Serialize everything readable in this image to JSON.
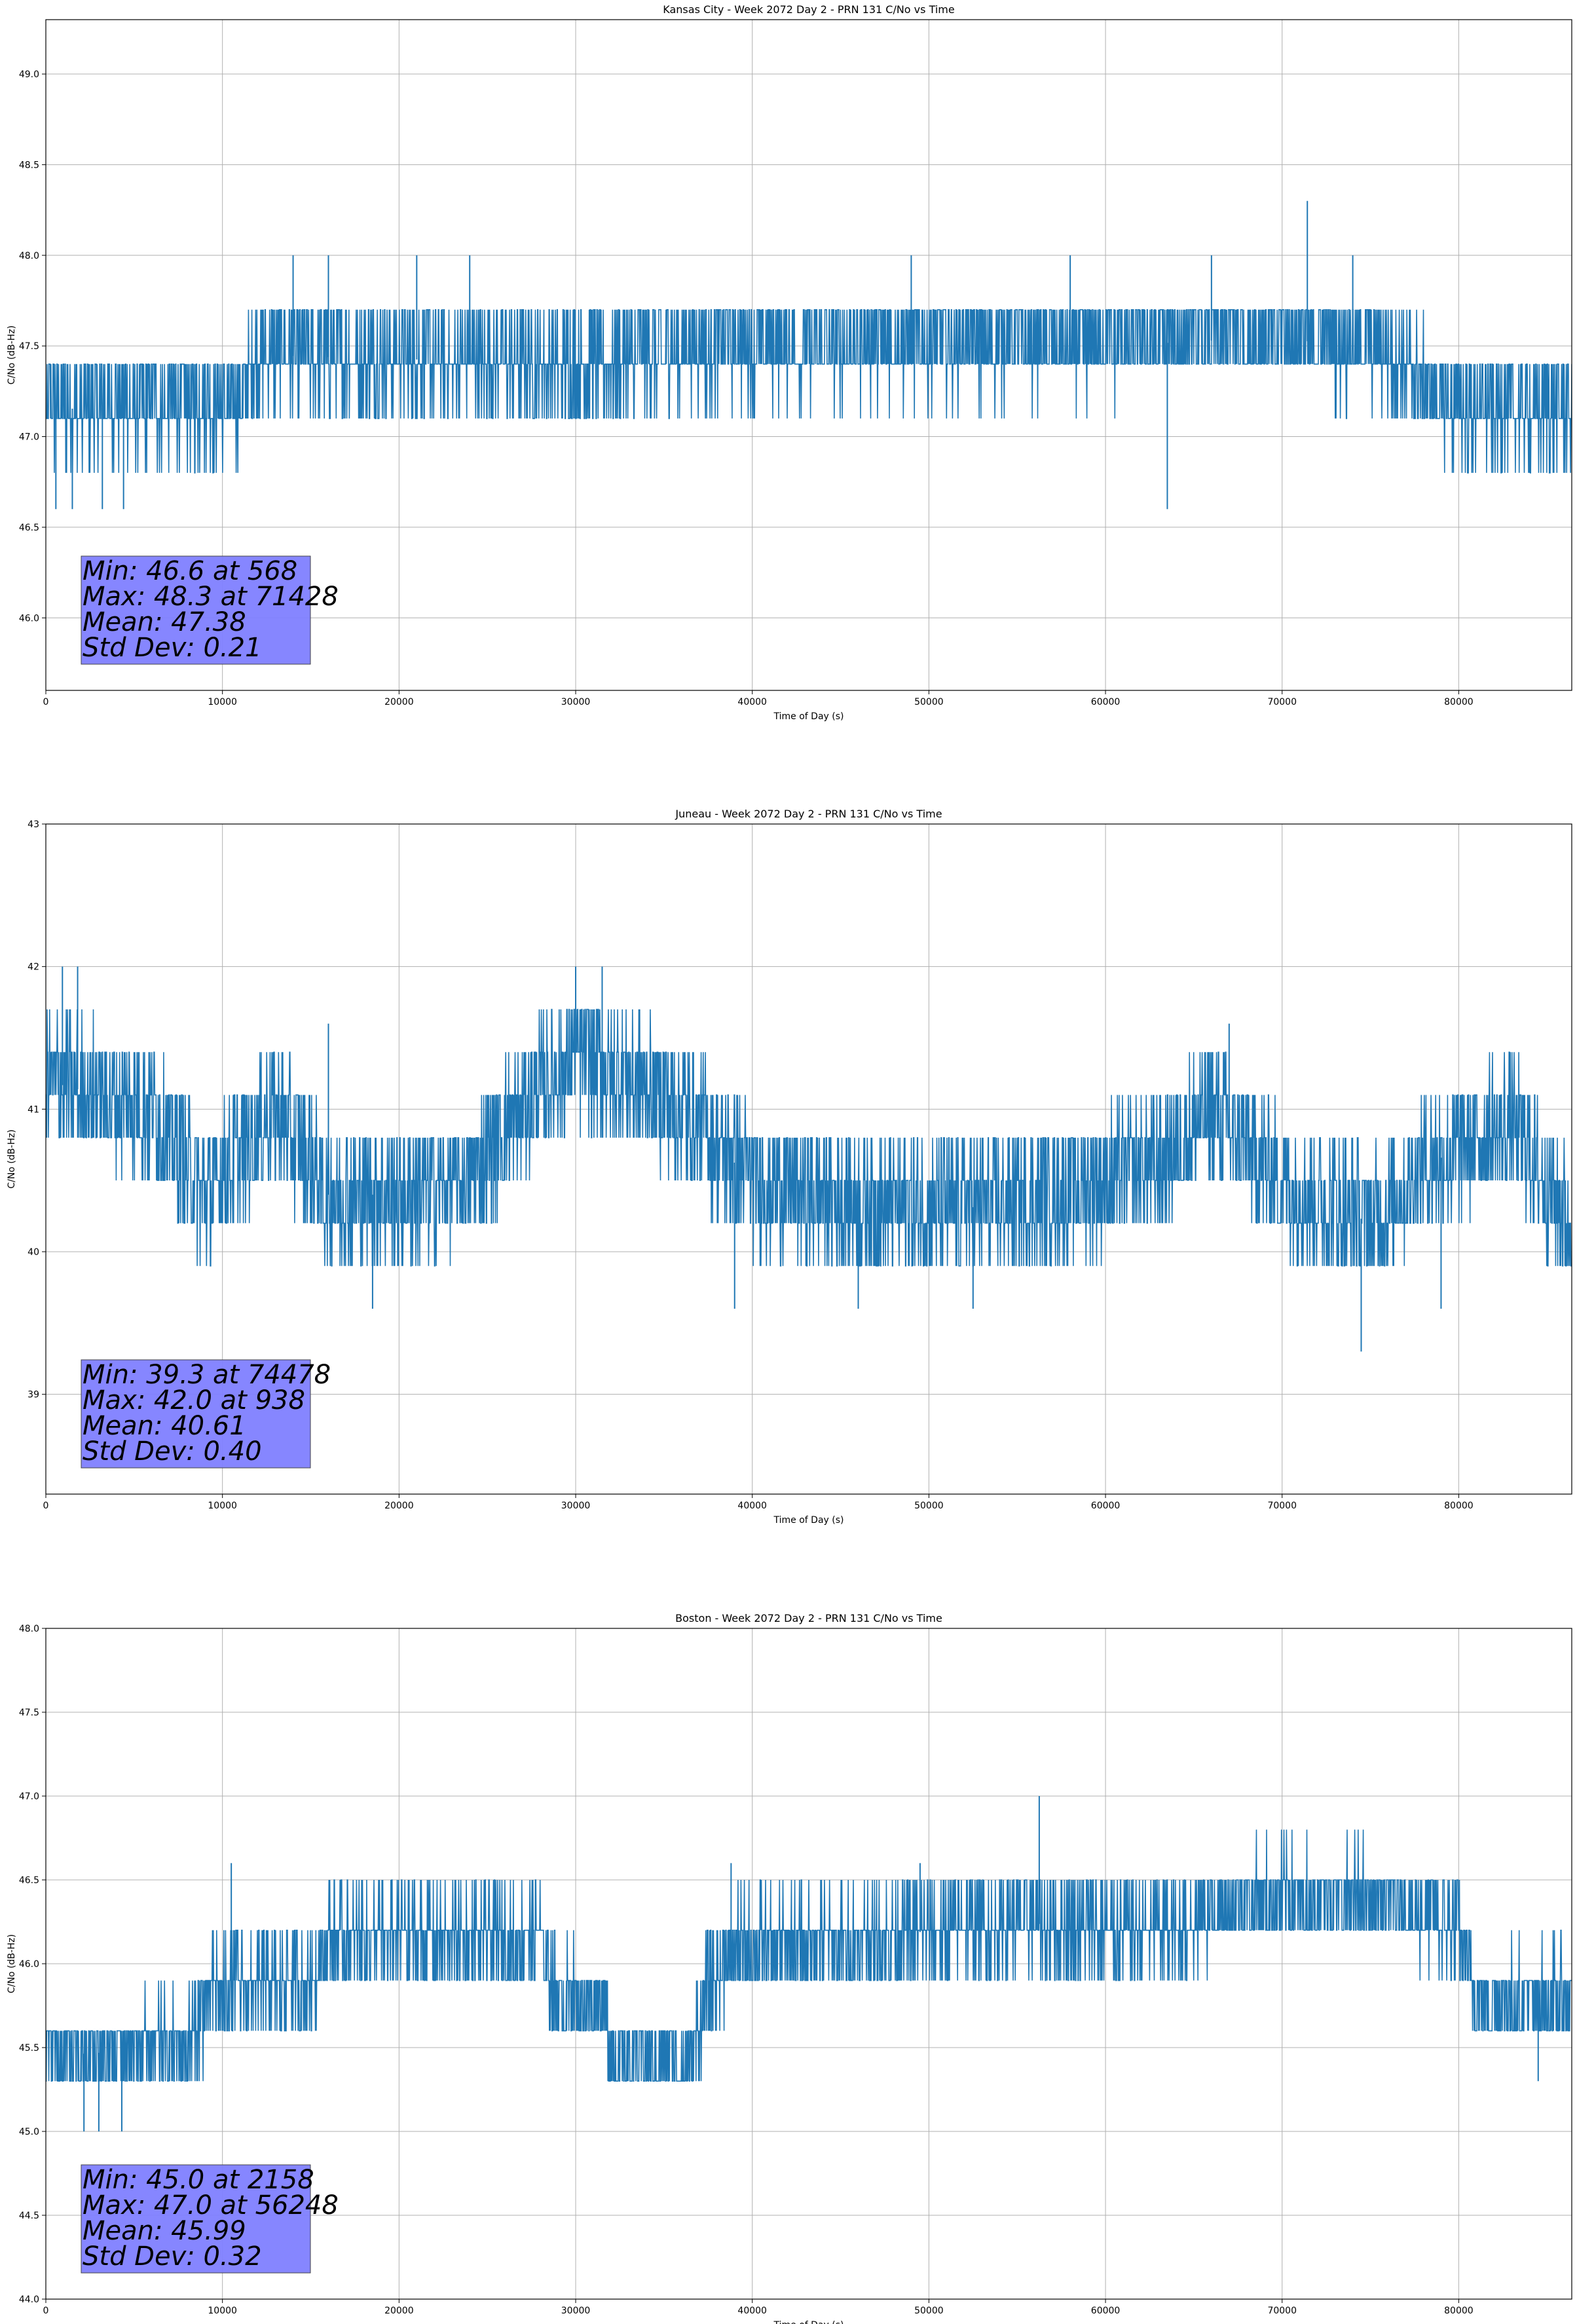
{
  "chart_data": [
    {
      "type": "line",
      "title": "Kansas City - Week 2072 Day 2 - PRN 131 C/No vs Time",
      "xlabel": "Time of Day (s)",
      "ylabel": "C/No (dB-Hz)",
      "xlim": [
        0,
        86400
      ],
      "ylim": [
        45.6,
        49.3
      ],
      "xticks": [
        0,
        10000,
        20000,
        30000,
        40000,
        50000,
        60000,
        70000,
        80000
      ],
      "yticks": [
        "46.0",
        "46.5",
        "47.0",
        "47.5",
        "48.0",
        "48.5",
        "49.0"
      ],
      "grid": true,
      "series_color": "#1f77b4",
      "quantization": 0.3,
      "trend": [
        [
          0,
          47.15
        ],
        [
          11000,
          47.18
        ],
        [
          12000,
          47.45
        ],
        [
          30000,
          47.4
        ],
        [
          40000,
          47.5
        ],
        [
          60000,
          47.5
        ],
        [
          70000,
          47.55
        ],
        [
          76000,
          47.45
        ],
        [
          80000,
          47.15
        ],
        [
          86400,
          47.15
        ]
      ],
      "spread": 0.17,
      "spikes": [
        [
          568,
          46.6
        ],
        [
          1500,
          46.6
        ],
        [
          3200,
          46.6
        ],
        [
          4400,
          46.6
        ],
        [
          14000,
          48.0
        ],
        [
          16000,
          48.0
        ],
        [
          21000,
          48.0
        ],
        [
          24000,
          48.0
        ],
        [
          49000,
          48.0
        ],
        [
          58000,
          48.0
        ],
        [
          63500,
          46.6
        ],
        [
          66000,
          48.0
        ],
        [
          71428,
          48.3
        ],
        [
          74000,
          48.0
        ]
      ],
      "stats": {
        "min": "Min: 46.6 at 568",
        "max": "Max: 48.3 at 71428",
        "mean": "Mean: 47.38",
        "std": "Std Dev: 0.21"
      },
      "stats_box_color": "#8080ff"
    },
    {
      "type": "line",
      "title": "Juneau - Week 2072 Day 2 - PRN 131 C/No vs Time",
      "xlabel": "Time of Day (s)",
      "ylabel": "C/No (dB-Hz)",
      "xlim": [
        0,
        86400
      ],
      "ylim": [
        38.3,
        43
      ],
      "xticks": [
        0,
        10000,
        20000,
        30000,
        40000,
        50000,
        60000,
        70000,
        80000
      ],
      "yticks": [
        "39",
        "40",
        "41",
        "42",
        "43"
      ],
      "grid": true,
      "series_color": "#1f77b4",
      "quantization": 0.3,
      "trend": [
        [
          0,
          41.2
        ],
        [
          6000,
          41.0
        ],
        [
          9000,
          40.4
        ],
        [
          13000,
          41.0
        ],
        [
          16000,
          40.4
        ],
        [
          20000,
          40.4
        ],
        [
          24000,
          40.5
        ],
        [
          27000,
          41.0
        ],
        [
          30000,
          41.4
        ],
        [
          36000,
          41.0
        ],
        [
          40000,
          40.5
        ],
        [
          48000,
          40.3
        ],
        [
          52000,
          40.3
        ],
        [
          60000,
          40.5
        ],
        [
          63000,
          40.6
        ],
        [
          66000,
          41.0
        ],
        [
          70000,
          40.5
        ],
        [
          75000,
          40.2
        ],
        [
          78000,
          40.6
        ],
        [
          83000,
          40.9
        ],
        [
          86400,
          40.2
        ]
      ],
      "spread": 0.3,
      "spikes": [
        [
          938,
          42.0
        ],
        [
          1800,
          42.0
        ],
        [
          30000,
          42.0
        ],
        [
          31500,
          42.0
        ],
        [
          18500,
          39.6
        ],
        [
          39000,
          39.6
        ],
        [
          46000,
          39.6
        ],
        [
          52500,
          39.6
        ],
        [
          74478,
          39.3
        ],
        [
          79000,
          39.6
        ],
        [
          67000,
          41.6
        ],
        [
          16000,
          41.6
        ]
      ],
      "stats": {
        "min": "Min: 39.3 at 74478",
        "max": "Max: 42.0 at 938",
        "mean": "Mean: 40.61",
        "std": "Std Dev: 0.40"
      },
      "stats_box_color": "#8080ff"
    },
    {
      "type": "line",
      "title": "Boston - Week 2072 Day 2 - PRN 131 C/No vs Time",
      "xlabel": "Time of Day (s)",
      "ylabel": "C/No (dB-Hz)",
      "xlim": [
        0,
        86400
      ],
      "ylim": [
        44.0,
        48.0
      ],
      "xticks": [
        0,
        10000,
        20000,
        30000,
        40000,
        50000,
        60000,
        70000,
        80000
      ],
      "yticks": [
        "44.0",
        "44.5",
        "45.0",
        "45.5",
        "46.0",
        "46.5",
        "47.0",
        "47.5",
        "48.0"
      ],
      "grid": true,
      "series_color": "#1f77b4",
      "quantization": 0.3,
      "trend": [
        [
          0,
          45.45
        ],
        [
          8000,
          45.5
        ],
        [
          9500,
          45.85
        ],
        [
          15000,
          45.9
        ],
        [
          16000,
          46.15
        ],
        [
          28000,
          46.15
        ],
        [
          29000,
          45.8
        ],
        [
          31500,
          45.8
        ],
        [
          32000,
          45.45
        ],
        [
          36500,
          45.45
        ],
        [
          37500,
          45.85
        ],
        [
          39000,
          46.1
        ],
        [
          46000,
          46.15
        ],
        [
          55000,
          46.25
        ],
        [
          60000,
          46.2
        ],
        [
          64000,
          46.2
        ],
        [
          68000,
          46.4
        ],
        [
          75000,
          46.4
        ],
        [
          80000,
          46.2
        ],
        [
          81000,
          45.8
        ],
        [
          86400,
          45.8
        ]
      ],
      "spread": 0.17,
      "spikes": [
        [
          2158,
          45.0
        ],
        [
          3000,
          45.0
        ],
        [
          4300,
          45.0
        ],
        [
          10500,
          46.6
        ],
        [
          38800,
          46.6
        ],
        [
          49500,
          46.6
        ],
        [
          56248,
          47.0
        ],
        [
          84500,
          45.3
        ]
      ],
      "stats": {
        "min": "Min: 45.0 at 2158",
        "max": "Max: 47.0 at 56248",
        "mean": "Mean: 45.99",
        "std": "Std Dev: 0.32"
      },
      "stats_box_color": "#8080ff"
    }
  ]
}
